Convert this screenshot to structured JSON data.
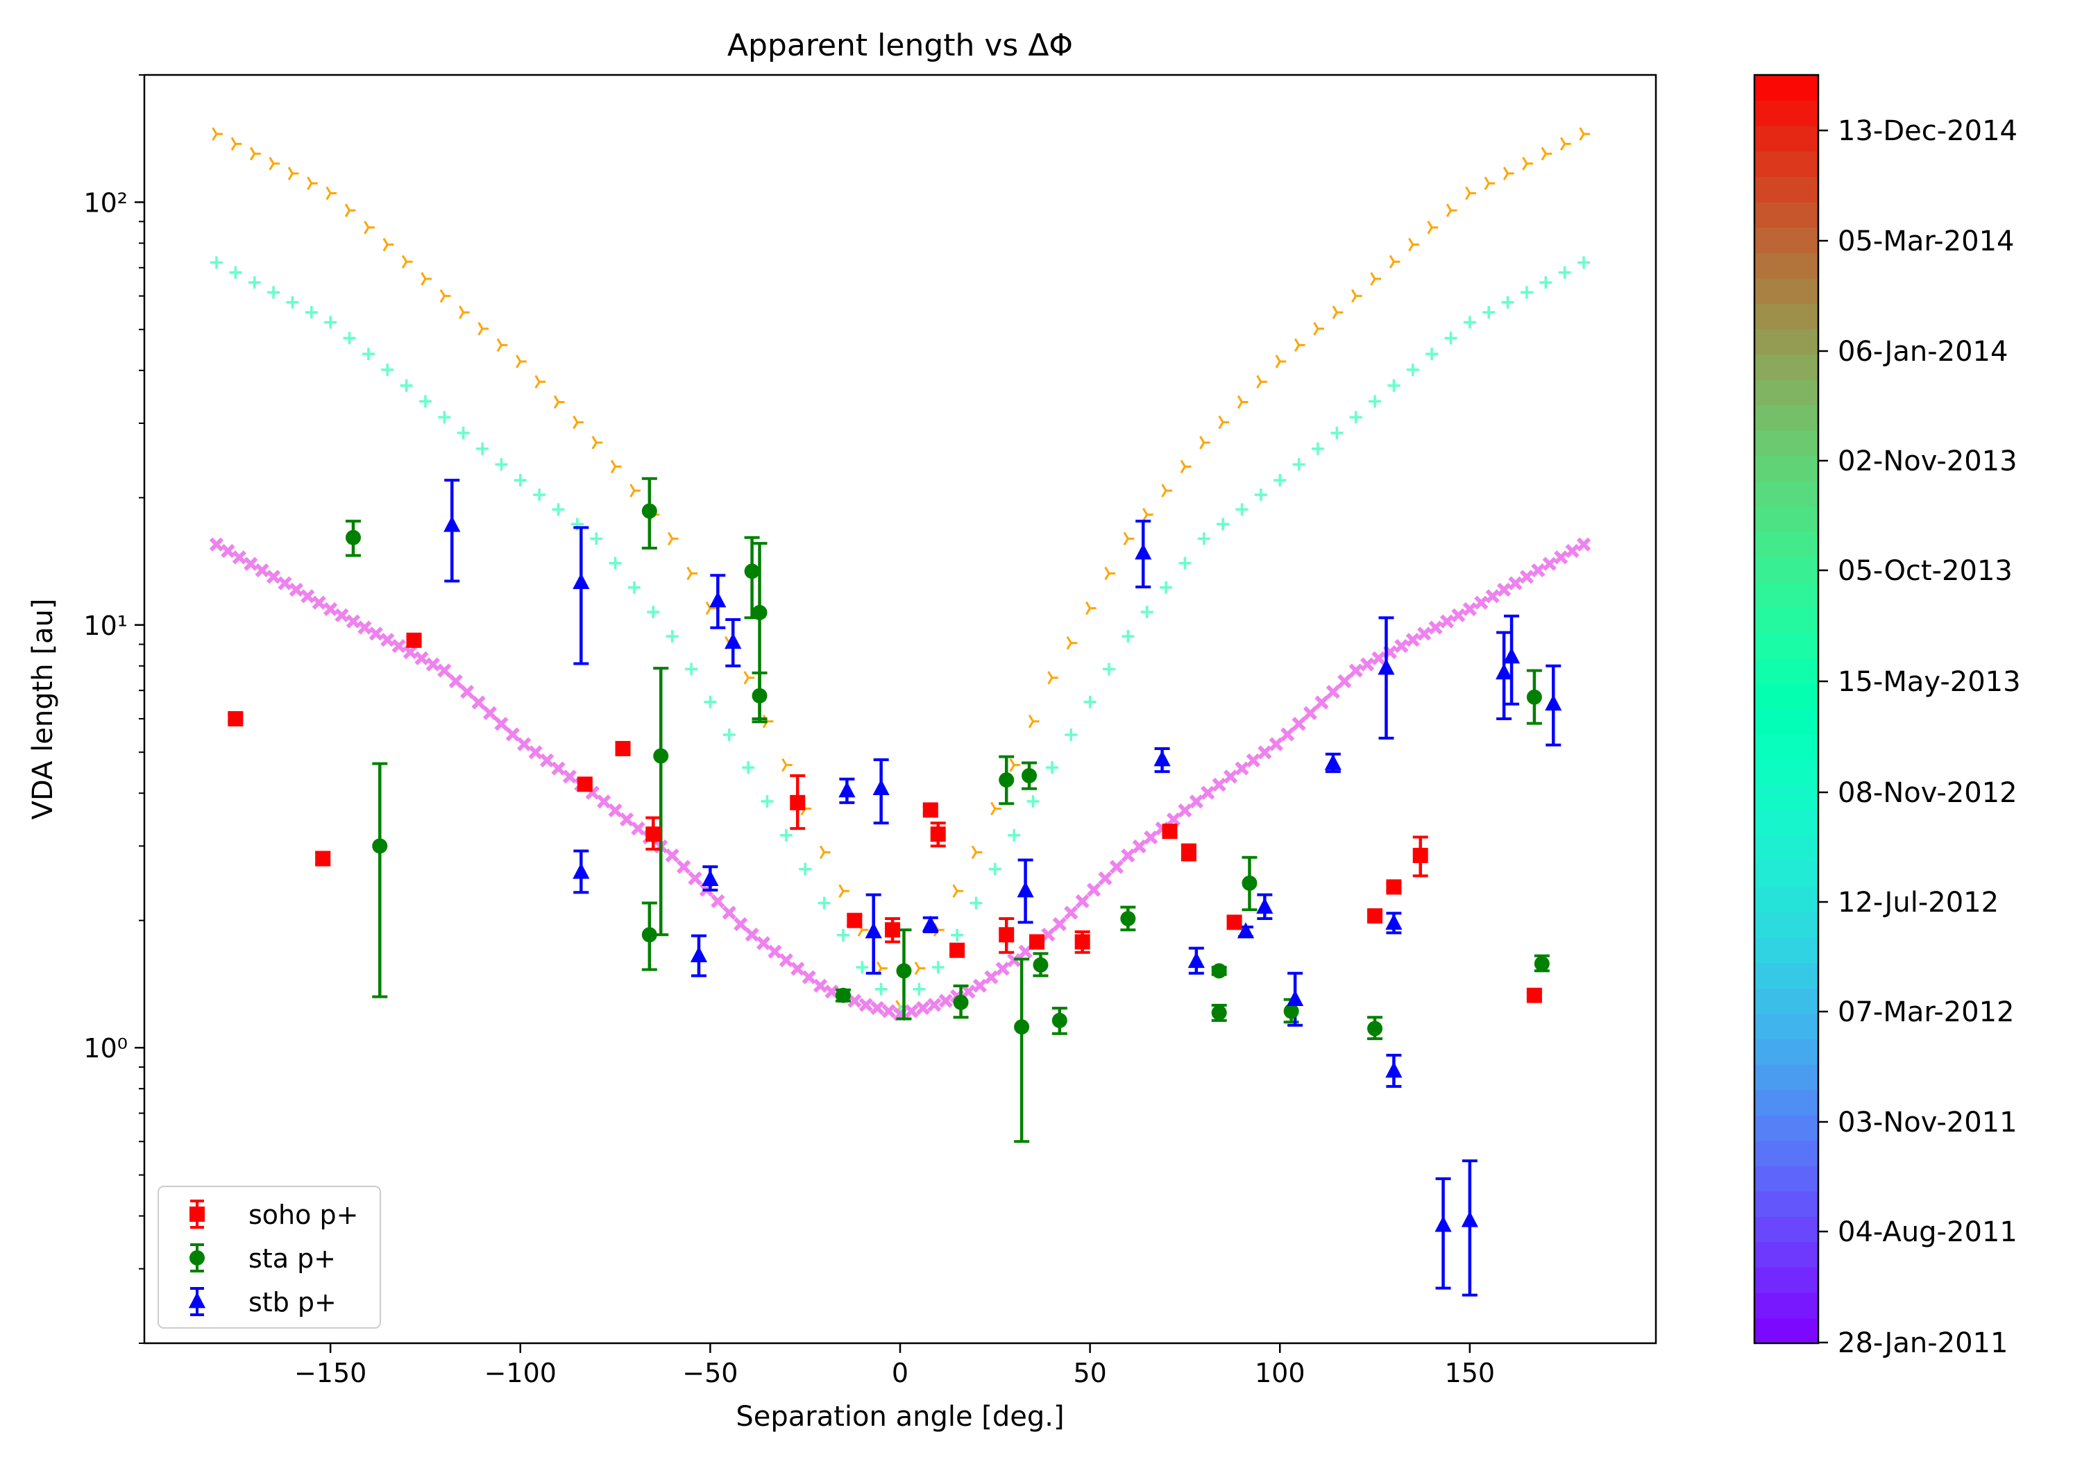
{
  "chart_data": {
    "type": "scatter",
    "title": "Apparent length vs ΔΦ",
    "xlabel": "Separation angle [deg.]",
    "ylabel": "VDA length [au]",
    "xlim": [
      -199,
      199
    ],
    "ylim": [
      0.2,
      200
    ],
    "yscale": "log",
    "x_ticks": [
      -150,
      -100,
      -50,
      0,
      50,
      100,
      150
    ],
    "x_tick_labels": [
      "−150",
      "−100",
      "−50",
      "0",
      "50",
      "100",
      "150"
    ],
    "y_ticks": [
      1,
      10,
      100
    ],
    "y_tick_labels": [
      "10⁰",
      "10¹",
      "10²"
    ],
    "grid": false,
    "legend_position": "lower-left",
    "model_curves": [
      {
        "color": "#ffa500",
        "marker": "tri-right",
        "anchors": [
          [
            -180,
            145
          ],
          [
            -150,
            105
          ],
          [
            -120,
            60
          ],
          [
            -100,
            42
          ],
          [
            -80,
            27
          ],
          [
            -60,
            16
          ],
          [
            -40,
            7.5
          ],
          [
            -20,
            2.9
          ],
          [
            -10,
            1.9
          ],
          [
            0,
            1.25
          ],
          [
            10,
            1.9
          ],
          [
            20,
            2.9
          ],
          [
            40,
            7.5
          ],
          [
            60,
            16
          ],
          [
            80,
            27
          ],
          [
            100,
            42
          ],
          [
            120,
            60
          ],
          [
            150,
            105
          ],
          [
            180,
            145
          ]
        ]
      },
      {
        "color": "#66ffcc",
        "marker": "plus",
        "anchors": [
          [
            -180,
            72
          ],
          [
            -150,
            52
          ],
          [
            -120,
            31
          ],
          [
            -100,
            22
          ],
          [
            -80,
            16
          ],
          [
            -60,
            9.4
          ],
          [
            -40,
            4.6
          ],
          [
            -20,
            2.2
          ],
          [
            -10,
            1.55
          ],
          [
            0,
            1.22
          ],
          [
            10,
            1.55
          ],
          [
            20,
            2.2
          ],
          [
            40,
            4.6
          ],
          [
            60,
            9.4
          ],
          [
            80,
            16
          ],
          [
            100,
            22
          ],
          [
            120,
            31
          ],
          [
            150,
            52
          ],
          [
            180,
            72
          ]
        ]
      },
      {
        "color": "#ee82ee",
        "marker": "x",
        "anchors": [
          [
            -180,
            15.5
          ],
          [
            -150,
            10.9
          ],
          [
            -120,
            7.8
          ],
          [
            -100,
            5.3
          ],
          [
            -80,
            3.95
          ],
          [
            -60,
            2.85
          ],
          [
            -40,
            1.88
          ],
          [
            -20,
            1.38
          ],
          [
            -10,
            1.27
          ],
          [
            0,
            1.2
          ],
          [
            10,
            1.27
          ],
          [
            20,
            1.38
          ],
          [
            40,
            1.88
          ],
          [
            60,
            2.85
          ],
          [
            80,
            3.95
          ],
          [
            100,
            5.3
          ],
          [
            120,
            7.8
          ],
          [
            150,
            10.9
          ],
          [
            180,
            15.5
          ]
        ]
      }
    ],
    "series": [
      {
        "name": "soho p+",
        "color": "#ff0000",
        "marker": "square",
        "points": [
          {
            "x": -175,
            "y": 6.0,
            "lo": 5.9,
            "hi": 6.15
          },
          {
            "x": -152,
            "y": 2.8,
            "lo": 2.72,
            "hi": 2.9
          },
          {
            "x": -128,
            "y": 9.2,
            "lo": 9.05,
            "hi": 9.4
          },
          {
            "x": -83,
            "y": 4.2,
            "lo": 4.12,
            "hi": 4.3
          },
          {
            "x": -73,
            "y": 5.1,
            "lo": 5.0,
            "hi": 5.2
          },
          {
            "x": -65,
            "y": 3.2,
            "lo": 2.95,
            "hi": 3.5
          },
          {
            "x": -27,
            "y": 3.8,
            "lo": 3.3,
            "hi": 4.4
          },
          {
            "x": -12,
            "y": 2.0,
            "lo": 1.95,
            "hi": 2.06
          },
          {
            "x": -2,
            "y": 1.9,
            "lo": 1.78,
            "hi": 2.02
          },
          {
            "x": 8,
            "y": 3.65,
            "lo": 3.58,
            "hi": 3.72
          },
          {
            "x": 10,
            "y": 3.2,
            "lo": 3.0,
            "hi": 3.4
          },
          {
            "x": 15,
            "y": 1.7,
            "lo": 1.66,
            "hi": 1.74
          },
          {
            "x": 28,
            "y": 1.85,
            "lo": 1.68,
            "hi": 2.02
          },
          {
            "x": 36,
            "y": 1.78,
            "lo": 1.72,
            "hi": 1.84
          },
          {
            "x": 48,
            "y": 1.78,
            "lo": 1.68,
            "hi": 1.88
          },
          {
            "x": 71,
            "y": 3.25,
            "lo": 3.18,
            "hi": 3.32
          },
          {
            "x": 76,
            "y": 2.9,
            "lo": 2.78,
            "hi": 3.02
          },
          {
            "x": 88,
            "y": 1.98,
            "lo": 1.92,
            "hi": 2.04
          },
          {
            "x": 125,
            "y": 2.05,
            "lo": 2.0,
            "hi": 2.1
          },
          {
            "x": 130,
            "y": 2.4,
            "lo": 2.35,
            "hi": 2.45
          },
          {
            "x": 137,
            "y": 2.85,
            "lo": 2.55,
            "hi": 3.15
          },
          {
            "x": 167,
            "y": 1.33,
            "lo": 1.31,
            "hi": 1.35
          }
        ]
      },
      {
        "name": "sta p+",
        "color": "#008000",
        "marker": "circle",
        "points": [
          {
            "x": -144,
            "y": 16.1,
            "lo": 14.6,
            "hi": 17.6
          },
          {
            "x": -137,
            "y": 3.0,
            "lo": 1.32,
            "hi": 4.7
          },
          {
            "x": -66,
            "y": 18.6,
            "lo": 15.2,
            "hi": 22.2
          },
          {
            "x": -66,
            "y": 1.85,
            "lo": 1.53,
            "hi": 2.2
          },
          {
            "x": -63,
            "y": 4.9,
            "lo": 1.85,
            "hi": 7.9
          },
          {
            "x": -39,
            "y": 13.4,
            "lo": 10.4,
            "hi": 16.1
          },
          {
            "x": -37,
            "y": 10.7,
            "lo": 6.0,
            "hi": 15.6
          },
          {
            "x": -37,
            "y": 6.8,
            "lo": 5.9,
            "hi": 7.7
          },
          {
            "x": -15,
            "y": 1.33,
            "lo": 1.29,
            "hi": 1.37
          },
          {
            "x": 1,
            "y": 1.52,
            "lo": 1.17,
            "hi": 1.9
          },
          {
            "x": 16,
            "y": 1.28,
            "lo": 1.18,
            "hi": 1.4
          },
          {
            "x": 28,
            "y": 4.3,
            "lo": 3.78,
            "hi": 4.88
          },
          {
            "x": 32,
            "y": 1.12,
            "lo": 0.6,
            "hi": 1.62
          },
          {
            "x": 34,
            "y": 4.4,
            "lo": 4.1,
            "hi": 4.72
          },
          {
            "x": 37,
            "y": 1.57,
            "lo": 1.48,
            "hi": 1.67
          },
          {
            "x": 42,
            "y": 1.16,
            "lo": 1.08,
            "hi": 1.24
          },
          {
            "x": 60,
            "y": 2.02,
            "lo": 1.9,
            "hi": 2.15
          },
          {
            "x": 84,
            "y": 1.21,
            "lo": 1.16,
            "hi": 1.26
          },
          {
            "x": 84,
            "y": 1.52,
            "lo": 1.49,
            "hi": 1.55
          },
          {
            "x": 92,
            "y": 2.45,
            "lo": 2.12,
            "hi": 2.82
          },
          {
            "x": 103,
            "y": 1.22,
            "lo": 1.15,
            "hi": 1.3
          },
          {
            "x": 125,
            "y": 1.11,
            "lo": 1.05,
            "hi": 1.18
          },
          {
            "x": 167,
            "y": 6.75,
            "lo": 5.85,
            "hi": 7.8
          },
          {
            "x": 169,
            "y": 1.58,
            "lo": 1.52,
            "hi": 1.65
          }
        ]
      },
      {
        "name": "stb p+",
        "color": "#0000ff",
        "marker": "triangle",
        "points": [
          {
            "x": -118,
            "y": 17.2,
            "lo": 12.7,
            "hi": 22.0
          },
          {
            "x": -84,
            "y": 12.6,
            "lo": 8.1,
            "hi": 17.0
          },
          {
            "x": -84,
            "y": 2.6,
            "lo": 2.33,
            "hi": 2.92
          },
          {
            "x": -53,
            "y": 1.65,
            "lo": 1.48,
            "hi": 1.84
          },
          {
            "x": -50,
            "y": 2.5,
            "lo": 2.36,
            "hi": 2.68
          },
          {
            "x": -48,
            "y": 11.4,
            "lo": 9.85,
            "hi": 13.1
          },
          {
            "x": -44,
            "y": 9.1,
            "lo": 8.0,
            "hi": 10.3
          },
          {
            "x": -14,
            "y": 4.05,
            "lo": 3.8,
            "hi": 4.32
          },
          {
            "x": -7,
            "y": 1.88,
            "lo": 1.5,
            "hi": 2.3
          },
          {
            "x": -5,
            "y": 4.1,
            "lo": 3.4,
            "hi": 4.8
          },
          {
            "x": 8,
            "y": 1.95,
            "lo": 1.88,
            "hi": 2.03
          },
          {
            "x": 33,
            "y": 2.35,
            "lo": 1.98,
            "hi": 2.78
          },
          {
            "x": 64,
            "y": 14.8,
            "lo": 12.3,
            "hi": 17.6
          },
          {
            "x": 69,
            "y": 4.8,
            "lo": 4.5,
            "hi": 5.1
          },
          {
            "x": 78,
            "y": 1.6,
            "lo": 1.5,
            "hi": 1.72
          },
          {
            "x": 91,
            "y": 1.88,
            "lo": 1.83,
            "hi": 1.93
          },
          {
            "x": 96,
            "y": 2.15,
            "lo": 2.02,
            "hi": 2.3
          },
          {
            "x": 104,
            "y": 1.3,
            "lo": 1.13,
            "hi": 1.5
          },
          {
            "x": 114,
            "y": 4.7,
            "lo": 4.5,
            "hi": 4.95
          },
          {
            "x": 128,
            "y": 7.9,
            "lo": 5.4,
            "hi": 10.4
          },
          {
            "x": 130,
            "y": 1.97,
            "lo": 1.87,
            "hi": 2.08
          },
          {
            "x": 130,
            "y": 0.88,
            "lo": 0.81,
            "hi": 0.96
          },
          {
            "x": 143,
            "y": 0.38,
            "lo": 0.27,
            "hi": 0.49
          },
          {
            "x": 150,
            "y": 0.39,
            "lo": 0.26,
            "hi": 0.54
          },
          {
            "x": 159,
            "y": 7.7,
            "lo": 6.0,
            "hi": 9.6
          },
          {
            "x": 161,
            "y": 8.4,
            "lo": 6.5,
            "hi": 10.5
          },
          {
            "x": 172,
            "y": 6.5,
            "lo": 5.2,
            "hi": 8.0
          }
        ]
      }
    ],
    "colorbar": {
      "colormap": "rainbow",
      "tick_labels": [
        "28-Jan-2011",
        "04-Aug-2011",
        "03-Nov-2011",
        "07-Mar-2012",
        "12-Jul-2012",
        "08-Nov-2012",
        "15-May-2013",
        "05-Oct-2013",
        "02-Nov-2013",
        "06-Jan-2014",
        "05-Mar-2014",
        "13-Dec-2014"
      ],
      "segments": 50
    }
  }
}
